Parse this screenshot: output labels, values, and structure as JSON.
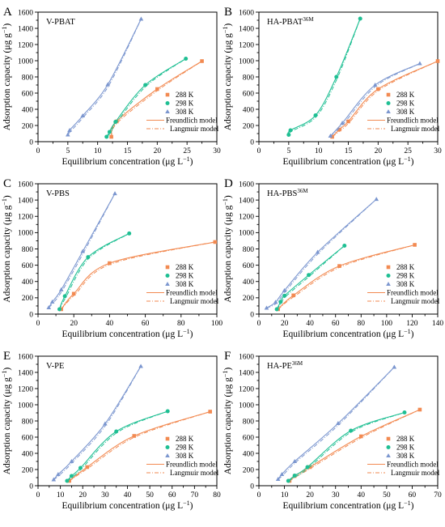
{
  "colors": {
    "288K": "#f28a52",
    "298K": "#1fbf93",
    "308K": "#7b96cf"
  },
  "legend": {
    "labels": [
      "288 K",
      "298 K",
      "308 K"
    ],
    "freundlich": "Freundlich model",
    "langmuir": "Langmuir model",
    "placement": "bottom-right"
  },
  "chart_data": [
    {
      "letter": "A",
      "title": "V-PBAT",
      "title_sup": "",
      "type": "scatter",
      "xlabel": "Equilibrium concentration (μg L",
      "ylabel": "Adsorption capacity (μg g",
      "xlim": [
        0,
        30
      ],
      "xticks": [
        "0",
        "5",
        "10",
        "15",
        "20",
        "25",
        "30"
      ],
      "ylim": [
        0,
        1600
      ],
      "yticks": [
        "0",
        "200",
        "400",
        "600",
        "800",
        "1000",
        "1200",
        "1400",
        "1600"
      ],
      "series": [
        {
          "key": "288K",
          "points": [
            [
              12.3,
              60
            ],
            [
              13.2,
              250
            ],
            [
              20,
              650
            ],
            [
              27.5,
              995
            ]
          ]
        },
        {
          "key": "298K",
          "points": [
            [
              11.5,
              60
            ],
            [
              12,
              120
            ],
            [
              13,
              245
            ],
            [
              18,
              700
            ],
            [
              24.8,
              1025
            ]
          ]
        },
        {
          "key": "308K",
          "points": [
            [
              5,
              85
            ],
            [
              5.3,
              140
            ],
            [
              7.5,
              320
            ],
            [
              11.7,
              705
            ],
            [
              17.3,
              1515
            ]
          ]
        }
      ]
    },
    {
      "letter": "B",
      "title": "HA-PBAT",
      "title_sup": "36M",
      "type": "scatter",
      "xlabel": "Equilibrium concentration (μg L",
      "ylabel": "Adsorption capacity (μg g",
      "xlim": [
        0,
        30
      ],
      "xticks": [
        "0",
        "5",
        "10",
        "15",
        "20",
        "25",
        "30"
      ],
      "ylim": [
        0,
        1600
      ],
      "yticks": [
        "0",
        "200",
        "400",
        "600",
        "800",
        "1000",
        "1200",
        "1400",
        "1600"
      ],
      "series": [
        {
          "key": "288K",
          "points": [
            [
              12.3,
              60
            ],
            [
              13.5,
              150
            ],
            [
              15,
              250
            ],
            [
              20,
              650
            ],
            [
              30,
              995
            ]
          ]
        },
        {
          "key": "298K",
          "points": [
            [
              5,
              85
            ],
            [
              5.3,
              140
            ],
            [
              9.5,
              325
            ],
            [
              13,
              800
            ],
            [
              17,
              1520
            ]
          ]
        },
        {
          "key": "308K",
          "points": [
            [
              12,
              70
            ],
            [
              14,
              230
            ],
            [
              19.5,
              700
            ],
            [
              27,
              965
            ]
          ]
        }
      ]
    },
    {
      "letter": "C",
      "title": "V-PBS",
      "title_sup": "",
      "type": "scatter",
      "xlabel": "Equilibrium concentration (μg L",
      "ylabel": "Adsorption capacity (μg g",
      "xlim": [
        0,
        100
      ],
      "xticks": [
        "0",
        "20",
        "40",
        "60",
        "80",
        "100"
      ],
      "ylim": [
        0,
        1600
      ],
      "yticks": [
        "0",
        "200",
        "400",
        "600",
        "800",
        "1000",
        "1200",
        "1400",
        "1600"
      ],
      "series": [
        {
          "key": "288K",
          "points": [
            [
              13,
              60
            ],
            [
              20,
              250
            ],
            [
              40,
              625
            ],
            [
              99,
              885
            ]
          ]
        },
        {
          "key": "298K",
          "points": [
            [
              12,
              60
            ],
            [
              15,
              220
            ],
            [
              28,
              700
            ],
            [
              51,
              990
            ]
          ]
        },
        {
          "key": "308K",
          "points": [
            [
              6,
              80
            ],
            [
              8,
              150
            ],
            [
              13,
              300
            ],
            [
              25,
              770
            ],
            [
              43,
              1480
            ]
          ]
        }
      ]
    },
    {
      "letter": "D",
      "title": "HA-PBS",
      "title_sup": "36M",
      "type": "scatter",
      "xlabel": "Equilibrium concentration (μg L",
      "ylabel": "Adsorption capacity (μg g",
      "xlim": [
        0,
        140
      ],
      "xticks": [
        "0",
        "20",
        "40",
        "60",
        "80",
        "100",
        "120",
        "140"
      ],
      "ylim": [
        0,
        1600
      ],
      "yticks": [
        "0",
        "200",
        "400",
        "600",
        "800",
        "1000",
        "1200",
        "1400",
        "1600"
      ],
      "series": [
        {
          "key": "288K",
          "points": [
            [
              15,
              60
            ],
            [
              27,
              230
            ],
            [
              63,
              590
            ],
            [
              122,
              850
            ]
          ]
        },
        {
          "key": "298K",
          "points": [
            [
              14,
              60
            ],
            [
              17,
              150
            ],
            [
              20,
              225
            ],
            [
              39,
              480
            ],
            [
              67,
              840
            ]
          ]
        },
        {
          "key": "308K",
          "points": [
            [
              6,
              75
            ],
            [
              13,
              145
            ],
            [
              20,
              290
            ],
            [
              46,
              760
            ],
            [
              92,
              1410
            ]
          ]
        }
      ]
    },
    {
      "letter": "E",
      "title": "V-PE",
      "title_sup": "",
      "type": "scatter",
      "xlabel": "Equilibrium concentration (μg L",
      "ylabel": "Adsorption capacity (μg g",
      "xlim": [
        0,
        80
      ],
      "xticks": [
        "0",
        "10",
        "20",
        "30",
        "40",
        "50",
        "60",
        "70",
        "80"
      ],
      "ylim": [
        0,
        1600
      ],
      "yticks": [
        "0",
        "200",
        "400",
        "600",
        "800",
        "1000",
        "1200",
        "1400",
        "1600"
      ],
      "series": [
        {
          "key": "288K",
          "points": [
            [
              14,
              60
            ],
            [
              22,
              230
            ],
            [
              43,
              615
            ],
            [
              77,
              915
            ]
          ]
        },
        {
          "key": "298K",
          "points": [
            [
              13,
              60
            ],
            [
              15,
              120
            ],
            [
              19,
              220
            ],
            [
              35,
              670
            ],
            [
              58,
              920
            ]
          ]
        },
        {
          "key": "308K",
          "points": [
            [
              7,
              75
            ],
            [
              9,
              140
            ],
            [
              15,
              300
            ],
            [
              30,
              765
            ],
            [
              46,
              1475
            ]
          ]
        }
      ]
    },
    {
      "letter": "F",
      "title": "HA-PE",
      "title_sup": "36M",
      "type": "scatter",
      "xlabel": "Equilibrium concentration (μg L",
      "ylabel": "Adsorption capacity (μg g",
      "xlim": [
        0,
        70
      ],
      "xticks": [
        "0",
        "10",
        "20",
        "30",
        "40",
        "50",
        "60",
        "70"
      ],
      "ylim": [
        0,
        1600
      ],
      "yticks": [
        "0",
        "200",
        "400",
        "600",
        "800",
        "1000",
        "1200",
        "1400",
        "1600"
      ],
      "series": [
        {
          "key": "288K",
          "points": [
            [
              12,
              60
            ],
            [
              14,
              120
            ],
            [
              20,
              230
            ],
            [
              40,
              610
            ],
            [
              63,
              940
            ]
          ]
        },
        {
          "key": "298K",
          "points": [
            [
              11.5,
              60
            ],
            [
              14,
              125
            ],
            [
              19,
              230
            ],
            [
              36,
              680
            ],
            [
              57,
              905
            ]
          ]
        },
        {
          "key": "308K",
          "points": [
            [
              7.5,
              80
            ],
            [
              9,
              140
            ],
            [
              14,
              300
            ],
            [
              31,
              770
            ],
            [
              53,
              1465
            ]
          ]
        }
      ]
    }
  ]
}
